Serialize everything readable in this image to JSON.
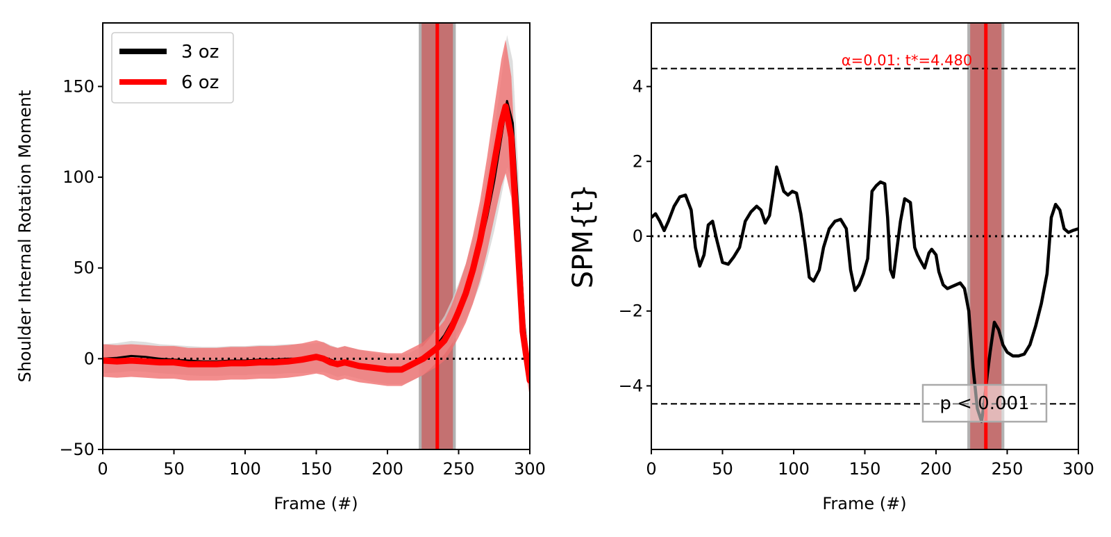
{
  "chart_data": [
    {
      "type": "line",
      "xlabel": "Frame (#)",
      "ylabel": "Shoulder Internal Rotation Moment",
      "xlim": [
        0,
        300
      ],
      "ylim": [
        -50,
        185
      ],
      "xticks": [
        0,
        50,
        100,
        150,
        200,
        250,
        300
      ],
      "yticks": [
        -50,
        0,
        50,
        100,
        150
      ],
      "legend": {
        "position": "top-left",
        "entries": [
          "3 oz",
          "6 oz"
        ]
      },
      "zero_line": {
        "y": 0,
        "style": "dotted"
      },
      "cluster_region": {
        "x_start": 222,
        "x_end": 248,
        "peak_x": 235
      },
      "colors": {
        "series_3oz": "#000000",
        "series_6oz": "#ff0000",
        "band_3oz": "#d9d9d9",
        "band_6oz": "#f08080",
        "cluster_gray": "#9e9e9e",
        "cluster_red": "#c76a6a",
        "peak_line": "#ff0000"
      },
      "series": [
        {
          "name": "3 oz",
          "x": [
            0,
            10,
            20,
            30,
            40,
            50,
            60,
            70,
            80,
            90,
            100,
            110,
            120,
            130,
            140,
            150,
            155,
            160,
            165,
            170,
            175,
            180,
            190,
            200,
            210,
            215,
            220,
            225,
            230,
            235,
            240,
            245,
            250,
            255,
            260,
            265,
            270,
            275,
            280,
            284,
            288,
            292,
            296,
            300
          ],
          "y": [
            0,
            0.5,
            1.5,
            1,
            0,
            -0.5,
            -1,
            -1.5,
            -1.5,
            -1,
            -1,
            -0.5,
            -0.5,
            0,
            0,
            0.5,
            1,
            -0.5,
            -2,
            -1,
            -2,
            -3,
            -5,
            -6,
            -6,
            -5,
            -3,
            -1,
            3,
            8,
            13,
            20,
            28,
            37,
            48,
            61,
            78,
            98,
            122,
            142,
            130,
            80,
            20,
            -10
          ],
          "band": 8
        },
        {
          "name": "6 oz",
          "x": [
            0,
            10,
            20,
            30,
            40,
            50,
            60,
            70,
            80,
            90,
            100,
            110,
            120,
            130,
            140,
            150,
            155,
            160,
            165,
            170,
            175,
            180,
            190,
            200,
            210,
            215,
            220,
            225,
            230,
            235,
            240,
            245,
            250,
            255,
            260,
            265,
            270,
            275,
            280,
            283,
            287,
            291,
            295,
            300
          ],
          "y": [
            -1,
            -1.5,
            -1,
            -1.5,
            -2,
            -2,
            -3,
            -3,
            -3,
            -2.5,
            -2.5,
            -2,
            -2,
            -1.5,
            -0.5,
            1,
            0,
            -2,
            -3,
            -2,
            -3,
            -4,
            -5,
            -6,
            -6,
            -4,
            -2,
            0,
            3,
            6,
            10,
            17,
            26,
            36,
            49,
            65,
            85,
            108,
            130,
            139,
            122,
            70,
            15,
            -12
          ],
          "band": 9
        }
      ]
    },
    {
      "type": "line",
      "xlabel": "Frame (#)",
      "ylabel": "SPM{t}",
      "xlim": [
        0,
        300
      ],
      "ylim": [
        -5.7,
        5.7
      ],
      "xticks": [
        0,
        50,
        100,
        150,
        200,
        250,
        300
      ],
      "yticks": [
        -4,
        -2,
        0,
        2,
        4
      ],
      "threshold": {
        "value": 4.48,
        "label": "α=0.01:  t*=4.480"
      },
      "p_value_label": "p < 0.001",
      "zero_line": {
        "y": 0,
        "style": "dotted"
      },
      "cluster_region": {
        "x_start": 222,
        "x_end": 248,
        "peak_x": 235
      },
      "series": [
        {
          "name": "SPM{t}",
          "x": [
            0,
            3,
            6,
            9,
            12,
            16,
            20,
            24,
            28,
            31,
            34,
            37,
            40,
            43,
            46,
            50,
            54,
            58,
            62,
            66,
            70,
            74,
            77,
            80,
            83,
            86,
            88,
            90,
            93,
            96,
            99,
            102,
            105,
            108,
            111,
            114,
            118,
            121,
            125,
            129,
            133,
            137,
            140,
            143,
            146,
            149,
            152,
            155,
            158,
            161,
            164,
            166,
            168,
            170,
            172,
            175,
            178,
            182,
            185,
            187,
            189,
            192,
            195,
            197,
            200,
            202,
            205,
            208,
            211,
            214,
            217,
            220,
            223,
            226,
            229,
            232,
            234,
            236,
            238,
            241,
            244,
            247,
            250,
            254,
            258,
            262,
            266,
            270,
            274,
            278,
            281,
            284,
            287,
            290,
            293,
            296,
            300
          ],
          "y": [
            0.5,
            0.6,
            0.4,
            0.15,
            0.4,
            0.8,
            1.05,
            1.1,
            0.7,
            -0.3,
            -0.8,
            -0.5,
            0.3,
            0.4,
            -0.1,
            -0.7,
            -0.75,
            -0.55,
            -0.3,
            0.4,
            0.65,
            0.8,
            0.7,
            0.35,
            0.55,
            1.3,
            1.85,
            1.6,
            1.2,
            1.1,
            1.2,
            1.15,
            0.6,
            -0.2,
            -1.1,
            -1.2,
            -0.9,
            -0.3,
            0.2,
            0.4,
            0.45,
            0.2,
            -0.9,
            -1.45,
            -1.3,
            -1.0,
            -0.6,
            1.2,
            1.35,
            1.45,
            1.4,
            0.5,
            -0.9,
            -1.1,
            -0.5,
            0.4,
            1.0,
            0.9,
            -0.3,
            -0.5,
            -0.65,
            -0.85,
            -0.45,
            -0.35,
            -0.5,
            -0.95,
            -1.3,
            -1.4,
            -1.35,
            -1.3,
            -1.25,
            -1.4,
            -2.0,
            -3.5,
            -4.6,
            -4.95,
            -4.4,
            -3.7,
            -3.1,
            -2.3,
            -2.5,
            -2.9,
            -3.1,
            -3.2,
            -3.2,
            -3.15,
            -2.9,
            -2.4,
            -1.8,
            -1.0,
            0.5,
            0.85,
            0.7,
            0.2,
            0.1,
            0.15,
            0.2
          ]
        }
      ]
    }
  ]
}
